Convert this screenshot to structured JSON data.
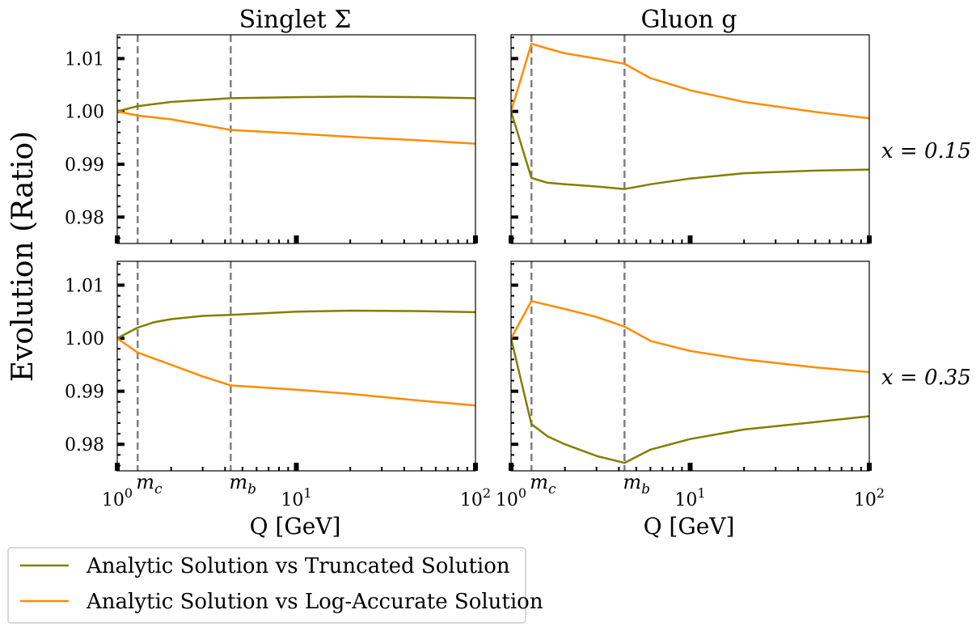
{
  "figure": {
    "ylabel": "Evolution (Ratio)",
    "xlabel": "Q [GeV]",
    "col_titles": [
      "Singlet Σ",
      "Gluon g"
    ],
    "row_labels": [
      "x = 0.15",
      "x = 0.35"
    ],
    "threshold_labels": [
      "m_c",
      "m_b"
    ],
    "legend": [
      "Analytic Solution vs Truncated Solution",
      "Analytic Solution vs Log-Accurate Solution"
    ]
  },
  "colors": {
    "truncated": "#808000",
    "log_accurate": "#ff8c00",
    "threshold": "#808080"
  },
  "chart_data": [
    {
      "type": "line",
      "title": "Singlet Σ",
      "row_label": "x = 0.15",
      "x_scale": "log",
      "xlim": [
        1,
        100
      ],
      "ylim": [
        0.975,
        1.0145
      ],
      "yticks": [
        0.98,
        0.99,
        1.0,
        1.01
      ],
      "ytick_labels": [
        "0.98",
        "0.99",
        "1.00",
        "1.01"
      ],
      "xtick_labels": [],
      "thresholds": [
        1.3,
        4.3
      ],
      "series": [
        {
          "name": "Analytic Solution vs Truncated Solution",
          "x": [
            1.0,
            1.3,
            2.0,
            4.3,
            10,
            20,
            50,
            100
          ],
          "y": [
            1.0,
            1.001,
            1.0018,
            1.0025,
            1.0027,
            1.0028,
            1.0027,
            1.0025
          ]
        },
        {
          "name": "Analytic Solution vs Log-Accurate Solution",
          "x": [
            1.0,
            1.3,
            2.0,
            4.3,
            10,
            20,
            50,
            100
          ],
          "y": [
            1.0,
            0.9992,
            0.9985,
            0.9965,
            0.9958,
            0.9952,
            0.9945,
            0.9939
          ]
        }
      ]
    },
    {
      "type": "line",
      "title": "Gluon g",
      "row_label": "x = 0.15",
      "x_scale": "log",
      "xlim": [
        1,
        100
      ],
      "ylim": [
        0.975,
        1.0145
      ],
      "yticks": [
        0.98,
        0.99,
        1.0,
        1.01
      ],
      "ytick_labels": [],
      "xtick_labels": [],
      "thresholds": [
        1.3,
        4.3
      ],
      "series": [
        {
          "name": "Analytic Solution vs Truncated Solution",
          "x": [
            1.0,
            1.3,
            1.6,
            2.0,
            3.0,
            4.3,
            6.0,
            10,
            20,
            50,
            100
          ],
          "y": [
            1.0,
            0.9874,
            0.9865,
            0.9862,
            0.9858,
            0.9853,
            0.9862,
            0.9873,
            0.9883,
            0.9888,
            0.989
          ]
        },
        {
          "name": "Analytic Solution vs Log-Accurate Solution",
          "x": [
            1.0,
            1.3,
            1.6,
            2.0,
            3.0,
            4.3,
            6.0,
            10,
            20,
            50,
            100
          ],
          "y": [
            1.0,
            1.0128,
            1.0119,
            1.011,
            1.01,
            1.009,
            1.0063,
            1.004,
            1.0018,
            0.9999,
            0.9987
          ]
        }
      ]
    },
    {
      "type": "line",
      "title": "",
      "row_label": "x = 0.35",
      "x_scale": "log",
      "xlim": [
        1,
        100
      ],
      "ylim": [
        0.975,
        1.0145
      ],
      "yticks": [
        0.98,
        0.99,
        1.0,
        1.01
      ],
      "ytick_labels": [
        "0.98",
        "0.99",
        "1.00",
        "1.01"
      ],
      "xtick_labels": [
        "10^0",
        "10^1",
        "10^2"
      ],
      "thresholds": [
        1.3,
        4.3
      ],
      "series": [
        {
          "name": "Analytic Solution vs Truncated Solution",
          "x": [
            1.0,
            1.3,
            1.6,
            2.0,
            3.0,
            4.3,
            10,
            20,
            50,
            100
          ],
          "y": [
            1.0,
            1.002,
            1.003,
            1.0036,
            1.0042,
            1.0044,
            1.005,
            1.0052,
            1.0051,
            1.0049
          ]
        },
        {
          "name": "Analytic Solution vs Log-Accurate Solution",
          "x": [
            1.0,
            1.3,
            2.0,
            3.0,
            4.3,
            10,
            20,
            50,
            100
          ],
          "y": [
            1.0,
            0.9973,
            0.995,
            0.9928,
            0.9911,
            0.9903,
            0.9895,
            0.9882,
            0.9873
          ]
        }
      ]
    },
    {
      "type": "line",
      "title": "",
      "row_label": "x = 0.35",
      "x_scale": "log",
      "xlim": [
        1,
        100
      ],
      "ylim": [
        0.975,
        1.0145
      ],
      "yticks": [
        0.98,
        0.99,
        1.0,
        1.01
      ],
      "ytick_labels": [],
      "xtick_labels": [
        "10^0",
        "10^1",
        "10^2"
      ],
      "thresholds": [
        1.3,
        4.3
      ],
      "series": [
        {
          "name": "Analytic Solution vs Truncated Solution",
          "x": [
            1.0,
            1.3,
            1.6,
            2.0,
            3.0,
            4.3,
            6.0,
            10,
            20,
            50,
            100
          ],
          "y": [
            1.0,
            0.9838,
            0.9815,
            0.98,
            0.9778,
            0.9765,
            0.979,
            0.981,
            0.9828,
            0.9842,
            0.9853
          ]
        },
        {
          "name": "Analytic Solution vs Log-Accurate Solution",
          "x": [
            1.0,
            1.3,
            2.0,
            3.0,
            4.3,
            6.0,
            10,
            20,
            50,
            100
          ],
          "y": [
            1.0,
            1.007,
            1.0055,
            1.004,
            1.0022,
            0.9995,
            0.9976,
            0.996,
            0.9945,
            0.9936
          ]
        }
      ]
    }
  ]
}
